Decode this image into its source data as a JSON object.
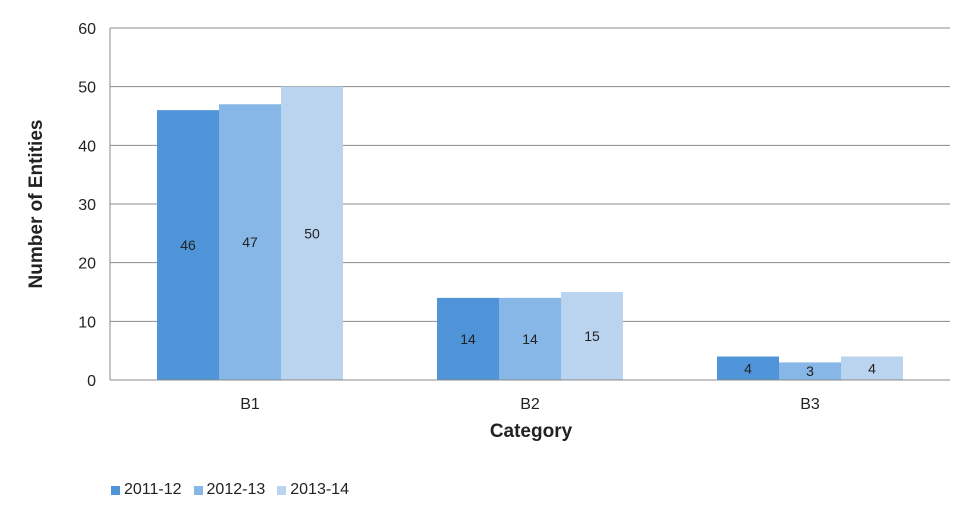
{
  "chart_data": {
    "type": "bar",
    "title": "",
    "xlabel": "Category",
    "ylabel": "Number of Entities",
    "categories": [
      "B1",
      "B2",
      "B3"
    ],
    "series": [
      {
        "name": "2011-12",
        "values": [
          46,
          14,
          4
        ],
        "color": "#4f94d8"
      },
      {
        "name": "2012-13",
        "values": [
          47,
          14,
          3
        ],
        "color": "#87b7e6"
      },
      {
        "name": "2013-14",
        "values": [
          50,
          15,
          4
        ],
        "color": "#bad4ef"
      }
    ],
    "ylim": [
      0,
      60
    ],
    "yticks": [
      "0",
      "10",
      "20",
      "30",
      "40",
      "50",
      "60"
    ],
    "grid": true,
    "legend_position": "bottom-left",
    "data_labels": true
  }
}
